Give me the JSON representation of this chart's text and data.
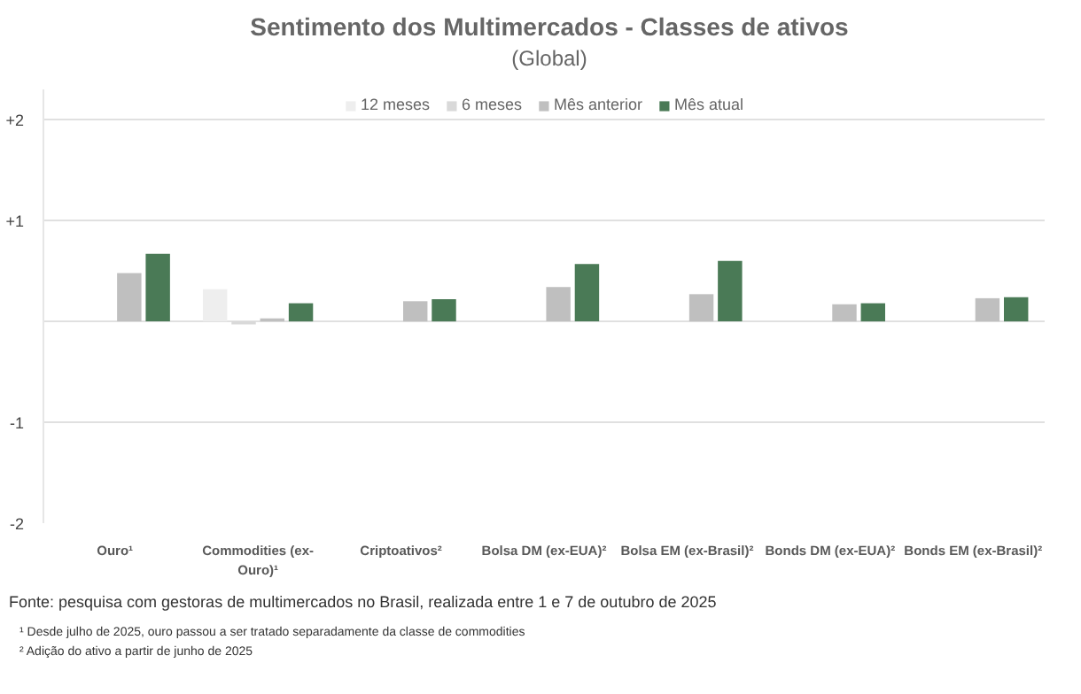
{
  "chart_data": {
    "type": "bar",
    "title": "Sentimento dos Multimercados - Classes de ativos",
    "subtitle": "(Global)",
    "categories": [
      "Ouro¹",
      "Commodities (ex-Ouro)¹",
      "Criptoativos²",
      "Bolsa DM (ex-EUA)²",
      "Bolsa EM (ex-Brasil)²",
      "Bonds DM (ex-EUA)²",
      "Bonds EM (ex-Brasil)²"
    ],
    "series": [
      {
        "name": "12 meses",
        "color": "#eeeeee",
        "values": [
          null,
          0.32,
          null,
          null,
          null,
          null,
          null
        ]
      },
      {
        "name": "6 meses",
        "color": "#d9d9d9",
        "values": [
          null,
          -0.03,
          null,
          null,
          null,
          null,
          null
        ]
      },
      {
        "name": "Mês anterior",
        "color": "#bfbfbf",
        "values": [
          0.48,
          0.03,
          0.2,
          0.34,
          0.27,
          0.17,
          0.23
        ]
      },
      {
        "name": "Mês atual",
        "color": "#4a7a56",
        "values": [
          0.67,
          0.18,
          0.22,
          0.57,
          0.6,
          0.18,
          0.24
        ]
      }
    ],
    "ylim": [
      -2,
      2.3
    ],
    "yticks": [
      {
        "value": -2,
        "label": "-2"
      },
      {
        "value": -1,
        "label": "-1"
      },
      {
        "value": 0,
        "label": null
      },
      {
        "value": 1,
        "label": "+1"
      },
      {
        "value": 2,
        "label": "+2"
      }
    ],
    "grid": "y",
    "legend": "top",
    "annotations": [
      "Fonte: pesquisa com gestoras de multimercados no Brasil, realizada entre 1 e 7 de outubro de 2025",
      "¹ Desde julho de 2025, ouro passou a ser tratado separadamente da classe de commodities",
      "² Adição do ativo a partir de junho de 2025"
    ]
  }
}
